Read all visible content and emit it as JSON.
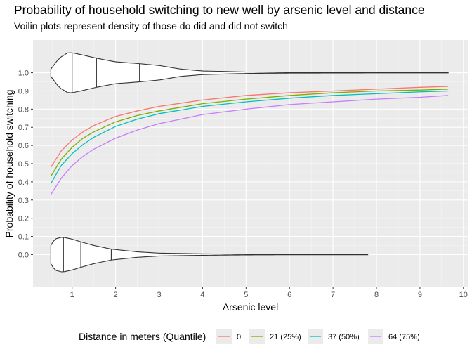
{
  "chart_data": {
    "type": "line",
    "title": "Probability of household switching to new well by arsenic level and distance",
    "subtitle": "Voilin plots represent density of those do did and did not switch",
    "xlabel": "Arsenic level",
    "ylabel": "Probability of household switching",
    "xlim": [
      0.1,
      10.1
    ],
    "ylim": [
      -0.18,
      1.18
    ],
    "x_ticks": [
      1,
      2,
      3,
      4,
      5,
      6,
      7,
      8,
      9,
      10
    ],
    "y_ticks": [
      0.0,
      0.1,
      0.2,
      0.3,
      0.4,
      0.5,
      0.6,
      0.7,
      0.8,
      0.9,
      1.0
    ],
    "y_tick_labels": [
      "0.0",
      "0.1",
      "0.2",
      "0.3",
      "0.4",
      "0.5",
      "0.6",
      "0.7",
      "0.8",
      "0.9",
      "1.0"
    ],
    "grid": true,
    "legend": {
      "title": "Distance in meters (Quantile)",
      "position": "bottom"
    },
    "x": [
      0.51,
      0.75,
      1.0,
      1.25,
      1.5,
      2.0,
      2.5,
      3.0,
      4.0,
      5.0,
      6.0,
      7.0,
      8.0,
      9.0,
      9.65
    ],
    "series": [
      {
        "name": "0",
        "color": "#F8766D",
        "values": [
          0.48,
          0.57,
          0.63,
          0.675,
          0.71,
          0.76,
          0.79,
          0.815,
          0.85,
          0.875,
          0.89,
          0.9,
          0.91,
          0.92,
          0.925
        ]
      },
      {
        "name": "21 (25%)",
        "color": "#7CAE00",
        "values": [
          0.43,
          0.525,
          0.59,
          0.64,
          0.675,
          0.73,
          0.765,
          0.79,
          0.83,
          0.855,
          0.875,
          0.89,
          0.9,
          0.905,
          0.91
        ]
      },
      {
        "name": "37 (50%)",
        "color": "#00BFC4",
        "values": [
          0.39,
          0.49,
          0.555,
          0.605,
          0.645,
          0.705,
          0.745,
          0.775,
          0.815,
          0.84,
          0.86,
          0.875,
          0.885,
          0.895,
          0.9
        ]
      },
      {
        "name": "64 (75%)",
        "color": "#C77CFF",
        "values": [
          0.33,
          0.42,
          0.49,
          0.54,
          0.58,
          0.64,
          0.685,
          0.72,
          0.77,
          0.8,
          0.825,
          0.84,
          0.855,
          0.865,
          0.875
        ]
      }
    ],
    "violins": [
      {
        "y": 1.0,
        "x_min": 0.51,
        "x_max": 9.65,
        "quantiles": [
          1.0,
          1.56,
          2.55
        ],
        "density_x": [
          0.51,
          0.7,
          0.9,
          1.0,
          1.2,
          1.56,
          2.0,
          2.55,
          3.0,
          3.5,
          4.0,
          5.0,
          6.0,
          8.0,
          9.65
        ],
        "density_w": [
          0.02,
          0.08,
          0.11,
          0.11,
          0.1,
          0.08,
          0.06,
          0.05,
          0.04,
          0.02,
          0.01,
          0.004,
          0.002,
          0.001,
          0.001
        ]
      },
      {
        "y": 0.0,
        "x_min": 0.51,
        "x_max": 7.8,
        "quantiles": [
          0.8,
          1.2,
          1.9
        ],
        "density_x": [
          0.51,
          0.6,
          0.75,
          0.8,
          1.0,
          1.2,
          1.5,
          1.9,
          2.5,
          3.0,
          4.0,
          5.0,
          6.0,
          7.0,
          7.8
        ],
        "density_w": [
          0.05,
          0.085,
          0.095,
          0.095,
          0.085,
          0.07,
          0.05,
          0.03,
          0.015,
          0.008,
          0.004,
          0.002,
          0.001,
          0.001,
          0.001
        ]
      }
    ]
  }
}
